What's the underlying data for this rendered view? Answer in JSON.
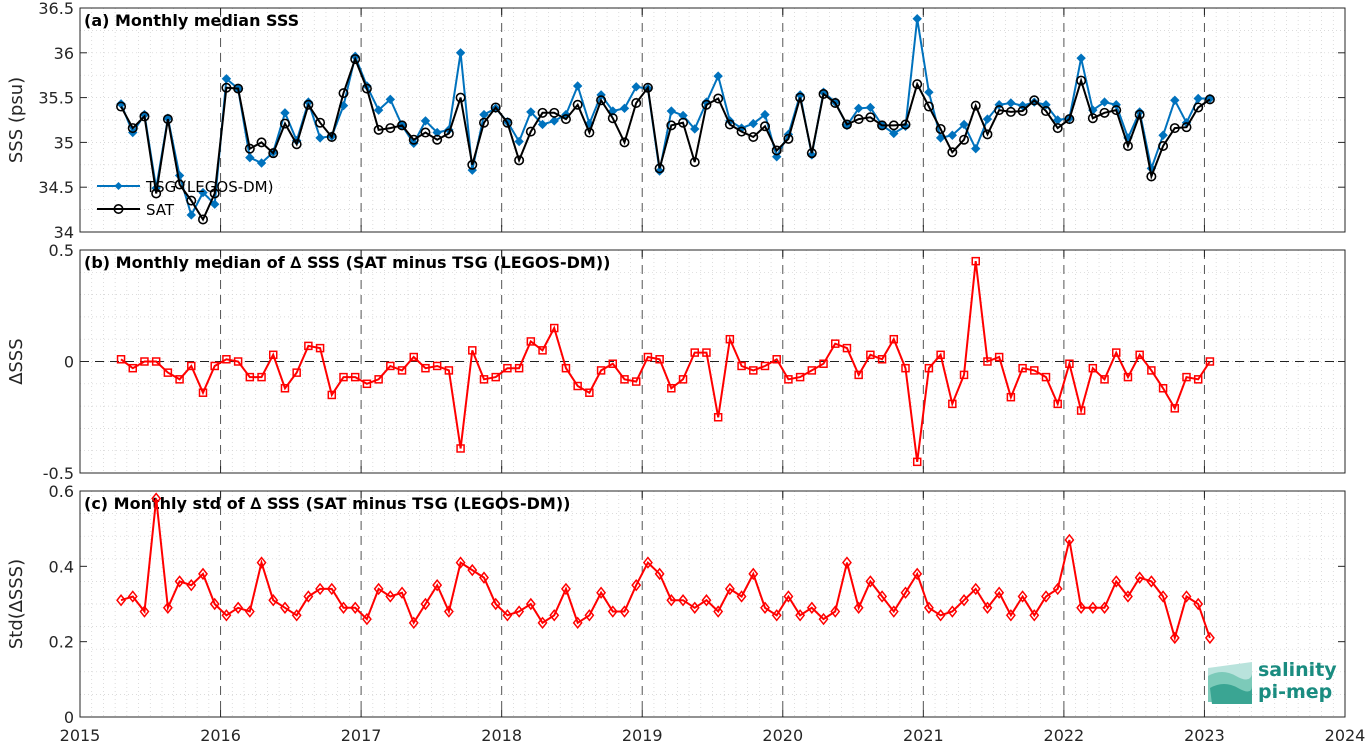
{
  "colors": {
    "tsg": "#0072BD",
    "sat": "#000000",
    "delta": "#FF0000",
    "logo": "#1a8c80"
  },
  "chart_data": [
    {
      "type": "line",
      "title": "(a) Monthly median SSS",
      "ylabel": "SSS (psu)",
      "xlim": [
        2015,
        2024
      ],
      "ylim": [
        34,
        36.5
      ],
      "xticks": [
        "2015",
        "2016",
        "2017",
        "2018",
        "2019",
        "2020",
        "2021",
        "2022",
        "2023",
        "2024"
      ],
      "yticks": [
        "34",
        "34.5",
        "35",
        "35.5",
        "36",
        "36.5"
      ],
      "grid": true,
      "legend_position": "lower-left",
      "x_start": 2015.292,
      "x_step": 0.0833,
      "series": [
        {
          "name": "TSG (LEGOS-DM)",
          "marker": "diamond",
          "values": [
            35.43,
            35.11,
            35.31,
            34.49,
            35.27,
            34.63,
            34.19,
            34.44,
            34.31,
            35.71,
            35.6,
            34.83,
            34.77,
            34.89,
            35.33,
            35.02,
            35.45,
            35.05,
            35.07,
            35.41,
            35.96,
            35.63,
            35.36,
            35.48,
            35.19,
            34.99,
            35.24,
            35.11,
            35.14,
            36.0,
            34.69,
            35.31,
            35.38,
            35.23,
            35.01,
            35.34,
            35.2,
            35.24,
            35.31,
            35.63,
            35.21,
            35.53,
            35.35,
            35.38,
            35.62,
            35.6,
            34.68,
            35.35,
            35.3,
            35.15,
            35.45,
            35.74,
            35.24,
            35.16,
            35.21,
            35.31,
            34.84,
            35.09,
            35.53,
            34.86,
            35.56,
            35.45,
            35.19,
            35.38,
            35.39,
            35.19,
            35.1,
            35.18,
            36.38,
            35.56,
            35.05,
            35.08,
            35.2,
            34.93,
            35.26,
            35.42,
            35.44,
            35.41,
            35.45,
            35.42,
            35.25,
            35.27,
            35.94,
            35.36,
            35.45,
            35.42,
            35.05,
            35.34,
            34.71,
            35.08,
            35.47,
            35.22,
            35.49,
            35.49
          ]
        },
        {
          "name": "SAT",
          "marker": "circle",
          "values": [
            35.4,
            35.16,
            35.29,
            34.43,
            35.26,
            34.53,
            34.35,
            34.14,
            34.43,
            35.61,
            35.6,
            34.93,
            35.0,
            34.88,
            35.21,
            34.98,
            35.42,
            35.22,
            35.06,
            35.55,
            35.93,
            35.6,
            35.14,
            35.16,
            35.19,
            35.03,
            35.11,
            35.03,
            35.1,
            35.5,
            34.75,
            35.22,
            35.39,
            35.22,
            34.8,
            35.12,
            35.33,
            35.33,
            35.26,
            35.42,
            35.11,
            35.47,
            35.27,
            35.0,
            35.44,
            35.61,
            34.71,
            35.19,
            35.22,
            34.78,
            35.42,
            35.49,
            35.2,
            35.12,
            35.06,
            35.18,
            34.91,
            35.04,
            35.5,
            34.88,
            35.54,
            35.44,
            35.2,
            35.26,
            35.28,
            35.19,
            35.19,
            35.2,
            35.65,
            35.4,
            35.15,
            34.89,
            35.03,
            35.41,
            35.09,
            35.36,
            35.34,
            35.35,
            35.47,
            35.35,
            35.16,
            35.26,
            35.69,
            35.27,
            35.33,
            35.36,
            34.96,
            35.31,
            34.62,
            34.96,
            35.16,
            35.17,
            35.39,
            35.48
          ]
        }
      ]
    },
    {
      "type": "line",
      "title": "(b) Monthly median of ∆ SSS (SAT minus TSG (LEGOS-DM))",
      "ylabel": "∆SSS",
      "xlim": [
        2015,
        2024
      ],
      "ylim": [
        -0.5,
        0.5
      ],
      "yticks": [
        "-0.5",
        "0",
        "0.5"
      ],
      "reference_line": 0,
      "grid": true,
      "x_start": 2015.292,
      "x_step": 0.0833,
      "series": [
        {
          "marker": "square",
          "values": [
            0.01,
            -0.03,
            0.0,
            0.0,
            -0.05,
            -0.08,
            -0.02,
            -0.14,
            -0.02,
            0.01,
            0.0,
            -0.07,
            -0.07,
            0.03,
            -0.12,
            -0.05,
            0.07,
            0.06,
            -0.15,
            -0.07,
            -0.07,
            -0.1,
            -0.08,
            -0.02,
            -0.04,
            0.02,
            -0.03,
            -0.02,
            -0.04,
            -0.39,
            0.05,
            -0.08,
            -0.07,
            -0.03,
            -0.03,
            0.09,
            0.05,
            0.15,
            -0.03,
            -0.11,
            -0.14,
            -0.04,
            -0.01,
            -0.08,
            -0.09,
            0.02,
            0.01,
            -0.12,
            -0.08,
            0.04,
            0.04,
            -0.25,
            0.1,
            -0.02,
            -0.04,
            -0.02,
            0.01,
            -0.08,
            -0.07,
            -0.04,
            -0.01,
            0.08,
            0.06,
            -0.06,
            0.03,
            0.01,
            0.1,
            -0.03,
            -0.45,
            -0.03,
            0.03,
            -0.19,
            -0.06,
            0.45,
            0.0,
            0.02,
            -0.16,
            -0.03,
            -0.04,
            -0.07,
            -0.19,
            -0.01,
            -0.22,
            -0.03,
            -0.08,
            0.04,
            -0.07,
            0.03,
            -0.04,
            -0.12,
            -0.21,
            -0.07,
            -0.08,
            0.0
          ]
        }
      ]
    },
    {
      "type": "line",
      "title": "(c) Monthly std of ∆ SSS (SAT minus TSG (LEGOS-DM))",
      "ylabel": "Std(∆SSS)",
      "xlim": [
        2015,
        2024
      ],
      "ylim": [
        0,
        0.6
      ],
      "yticks": [
        "0",
        "0.2",
        "0.4",
        "0.6"
      ],
      "grid": true,
      "x_start": 2015.292,
      "x_step": 0.0833,
      "series": [
        {
          "marker": "diamond",
          "values": [
            0.31,
            0.32,
            0.28,
            0.58,
            0.29,
            0.36,
            0.35,
            0.38,
            0.3,
            0.27,
            0.29,
            0.28,
            0.41,
            0.31,
            0.29,
            0.27,
            0.32,
            0.34,
            0.34,
            0.29,
            0.29,
            0.26,
            0.34,
            0.32,
            0.33,
            0.25,
            0.3,
            0.35,
            0.28,
            0.41,
            0.39,
            0.37,
            0.3,
            0.27,
            0.28,
            0.3,
            0.25,
            0.27,
            0.34,
            0.25,
            0.27,
            0.33,
            0.28,
            0.28,
            0.35,
            0.41,
            0.38,
            0.31,
            0.31,
            0.29,
            0.31,
            0.28,
            0.34,
            0.32,
            0.38,
            0.29,
            0.27,
            0.32,
            0.27,
            0.29,
            0.26,
            0.28,
            0.41,
            0.29,
            0.36,
            0.32,
            0.28,
            0.33,
            0.38,
            0.29,
            0.27,
            0.28,
            0.31,
            0.34,
            0.29,
            0.33,
            0.27,
            0.32,
            0.27,
            0.32,
            0.34,
            0.47,
            0.29,
            0.29,
            0.29,
            0.36,
            0.32,
            0.37,
            0.36,
            0.32,
            0.21,
            0.32,
            0.3,
            0.21
          ]
        }
      ]
    }
  ],
  "logo": {
    "line1": "salinity",
    "line2": "pi-mep",
    "icon": "wave-logo-icon"
  }
}
